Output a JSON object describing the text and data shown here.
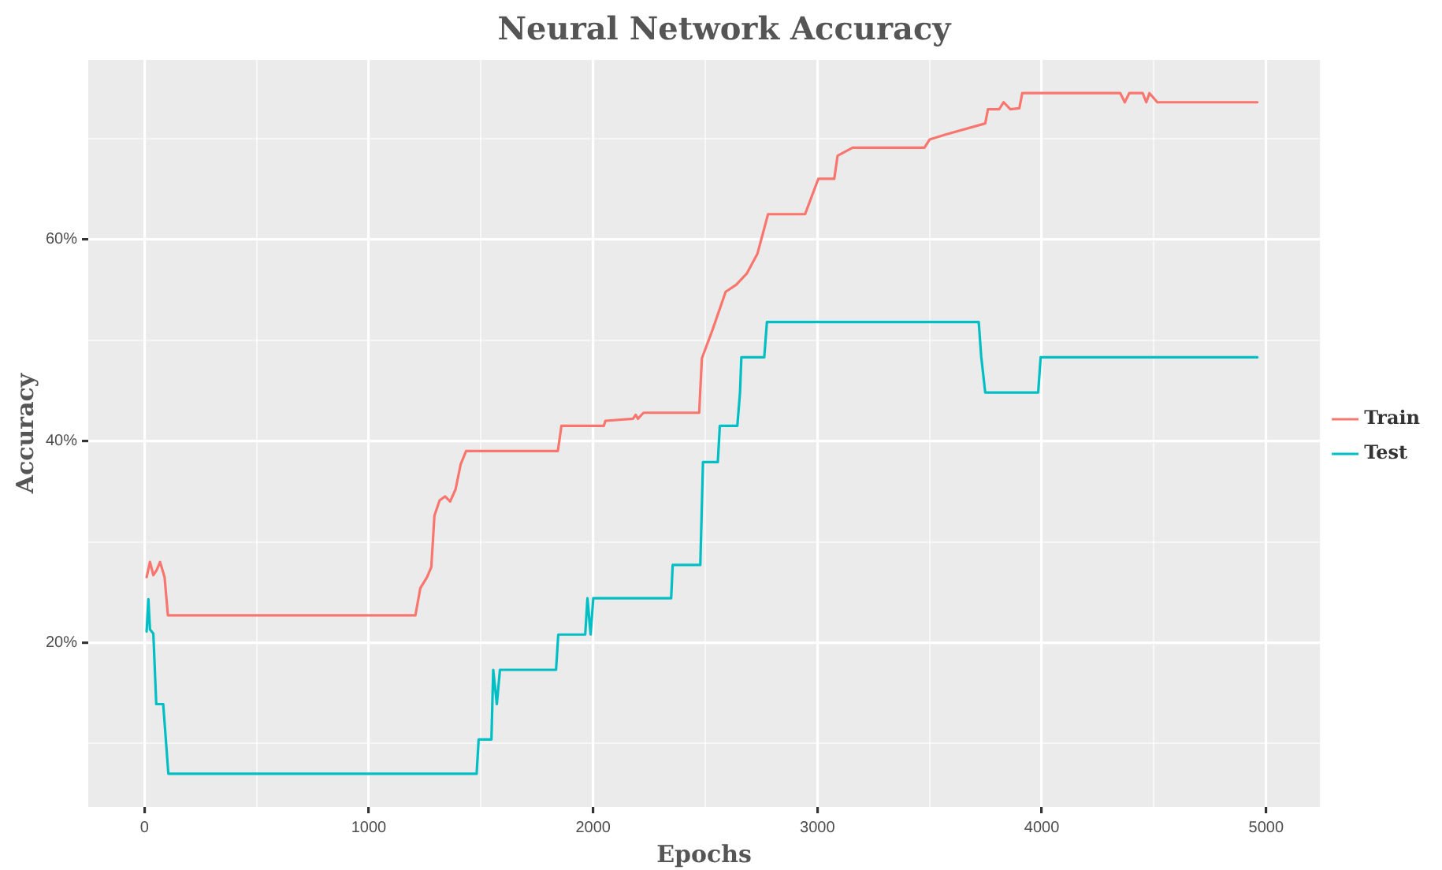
{
  "chart_data": {
    "type": "line",
    "title": "Neural Network Accuracy",
    "xlabel": "Epochs",
    "ylabel": "Accuracy",
    "xlim": [
      -250,
      5240
    ],
    "ylim": [
      3.7,
      77.8
    ],
    "xticks": [
      0,
      {
        "value": 500,
        "label": null
      },
      1000,
      {
        "value": 1500,
        "label": null
      },
      2000,
      {
        "value": 2500,
        "label": null
      },
      3000,
      {
        "value": 3500,
        "label": null
      },
      4000,
      {
        "value": 4500,
        "label": null
      },
      5000
    ],
    "yticks": [
      {
        "value": 10,
        "label": null
      },
      {
        "value": 20,
        "label": "20%"
      },
      {
        "value": 30,
        "label": null
      },
      {
        "value": 40,
        "label": "40%"
      },
      {
        "value": 50,
        "label": null
      },
      {
        "value": 60,
        "label": "60%"
      },
      {
        "value": 70,
        "label": null
      }
    ],
    "grid": true,
    "legend": "right",
    "marker": "none",
    "line_style": "solid",
    "series": [
      {
        "name": "Train",
        "color": "#f8766d",
        "x": [
          10,
          25,
          40,
          55,
          70,
          90,
          105,
          1208,
          1230,
          1260,
          1279,
          1293,
          1316,
          1340,
          1363,
          1387,
          1410,
          1434,
          1843,
          1859,
          2048,
          2055,
          2178,
          2190,
          2200,
          2225,
          2473,
          2485,
          2532,
          2591,
          2638,
          2685,
          2733,
          2780,
          2945,
          3004,
          3075,
          3090,
          3157,
          3477,
          3500,
          3571,
          3748,
          3760,
          3810,
          3830,
          3860,
          3900,
          3913,
          4350,
          4370,
          4390,
          4450,
          4466,
          4480,
          4515,
          4961
        ],
        "values": [
          26.5,
          28.0,
          26.7,
          27.2,
          28.0,
          26.5,
          22.7,
          22.7,
          25.4,
          26.5,
          27.5,
          32.6,
          34.1,
          34.5,
          34.0,
          35.2,
          37.7,
          39.0,
          39.0,
          41.5,
          41.5,
          42.0,
          42.2,
          42.6,
          42.2,
          42.8,
          42.8,
          48.2,
          51.0,
          54.8,
          55.5,
          56.6,
          58.6,
          62.5,
          62.5,
          66.0,
          66.0,
          68.3,
          69.1,
          69.1,
          69.9,
          70.4,
          71.5,
          72.9,
          72.9,
          73.6,
          72.9,
          73.0,
          74.5,
          74.5,
          73.6,
          74.5,
          74.5,
          73.6,
          74.5,
          73.6,
          73.6
        ]
      },
      {
        "name": "Test",
        "color": "#00bfc4",
        "x": [
          10,
          18,
          25,
          40,
          53,
          84,
          107,
          1481,
          1490,
          1547,
          1555,
          1571,
          1585,
          1835,
          1845,
          1965,
          1975,
          1989,
          2001,
          2348,
          2355,
          2478,
          2490,
          2556,
          2565,
          2643,
          2655,
          2661,
          2763,
          2775,
          3719,
          3730,
          3748,
          3984,
          3995,
          4961
        ],
        "values": [
          21.1,
          24.3,
          21.3,
          20.9,
          13.9,
          13.9,
          7.0,
          7.0,
          10.4,
          10.4,
          17.3,
          13.9,
          17.3,
          17.3,
          20.8,
          20.8,
          24.4,
          20.8,
          24.4,
          24.4,
          27.7,
          27.7,
          37.9,
          37.9,
          41.5,
          41.5,
          44.8,
          48.3,
          48.3,
          51.8,
          51.8,
          48.4,
          44.8,
          44.8,
          48.3,
          48.3
        ]
      }
    ]
  }
}
